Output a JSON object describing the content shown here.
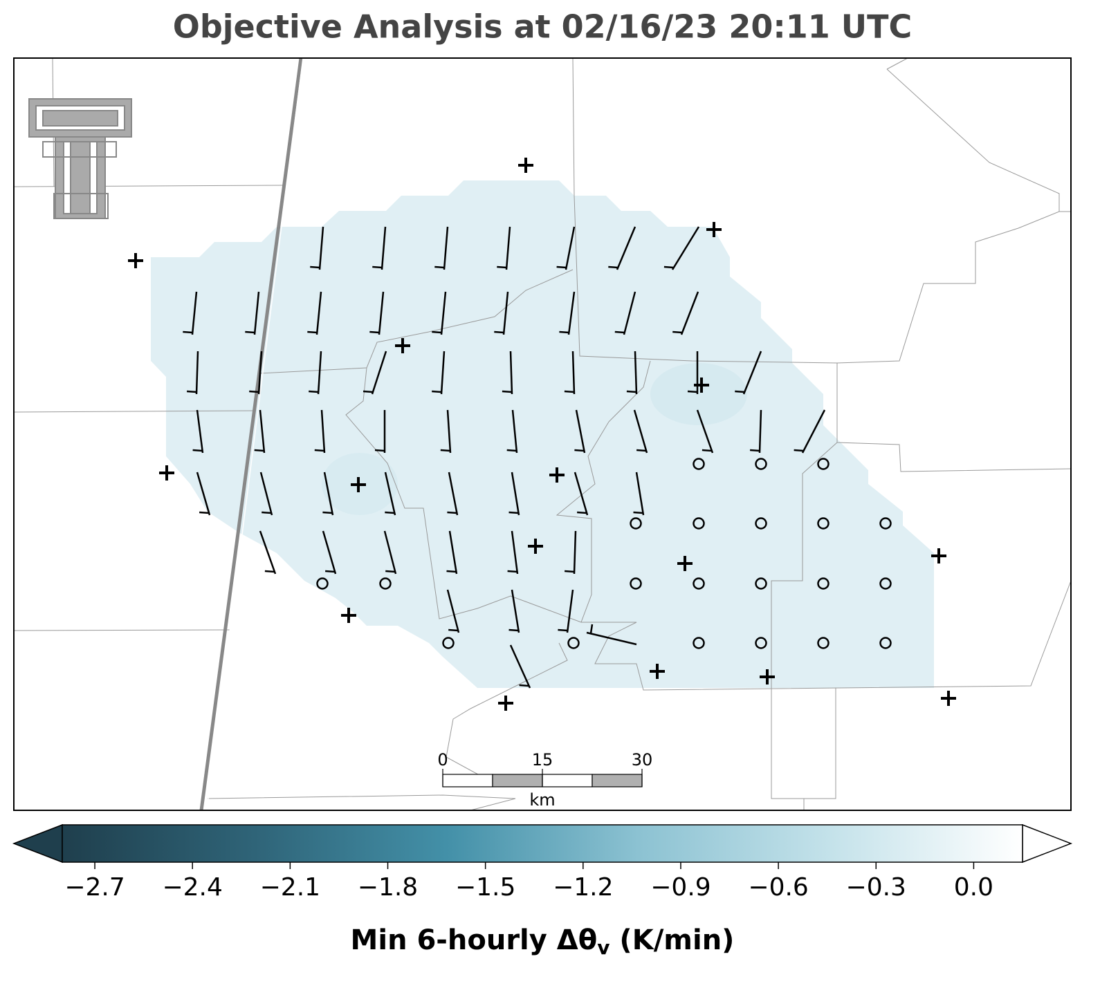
{
  "title": "Objective Analysis at 02/16/23 20:11 UTC",
  "colorbar": {
    "label": [
      "Min 6-hourly Δθ",
      "v",
      " (K/min)"
    ],
    "lim": [
      -2.8,
      0.15
    ],
    "colors": [
      "#1f3f4d",
      "#2f6478",
      "#4390a8",
      "#8cc2d2",
      "#c4e2ea",
      "#ffffff"
    ],
    "ticks": [
      {
        "value": -2.7,
        "label": "−2.7"
      },
      {
        "value": -2.4,
        "label": "−2.4"
      },
      {
        "value": -2.1,
        "label": "−2.1"
      },
      {
        "value": -1.8,
        "label": "−1.8"
      },
      {
        "value": -1.5,
        "label": "−1.5"
      },
      {
        "value": -1.2,
        "label": "−1.2"
      },
      {
        "value": -0.9,
        "label": "−0.9"
      },
      {
        "value": -0.6,
        "label": "−0.6"
      },
      {
        "value": -0.3,
        "label": "−0.3"
      },
      {
        "value": 0,
        "label": "0.0"
      }
    ]
  },
  "scale_bar": {
    "lim": [
      0,
      30
    ],
    "ticks": [
      0,
      15,
      30
    ],
    "unit": "km"
  }
}
